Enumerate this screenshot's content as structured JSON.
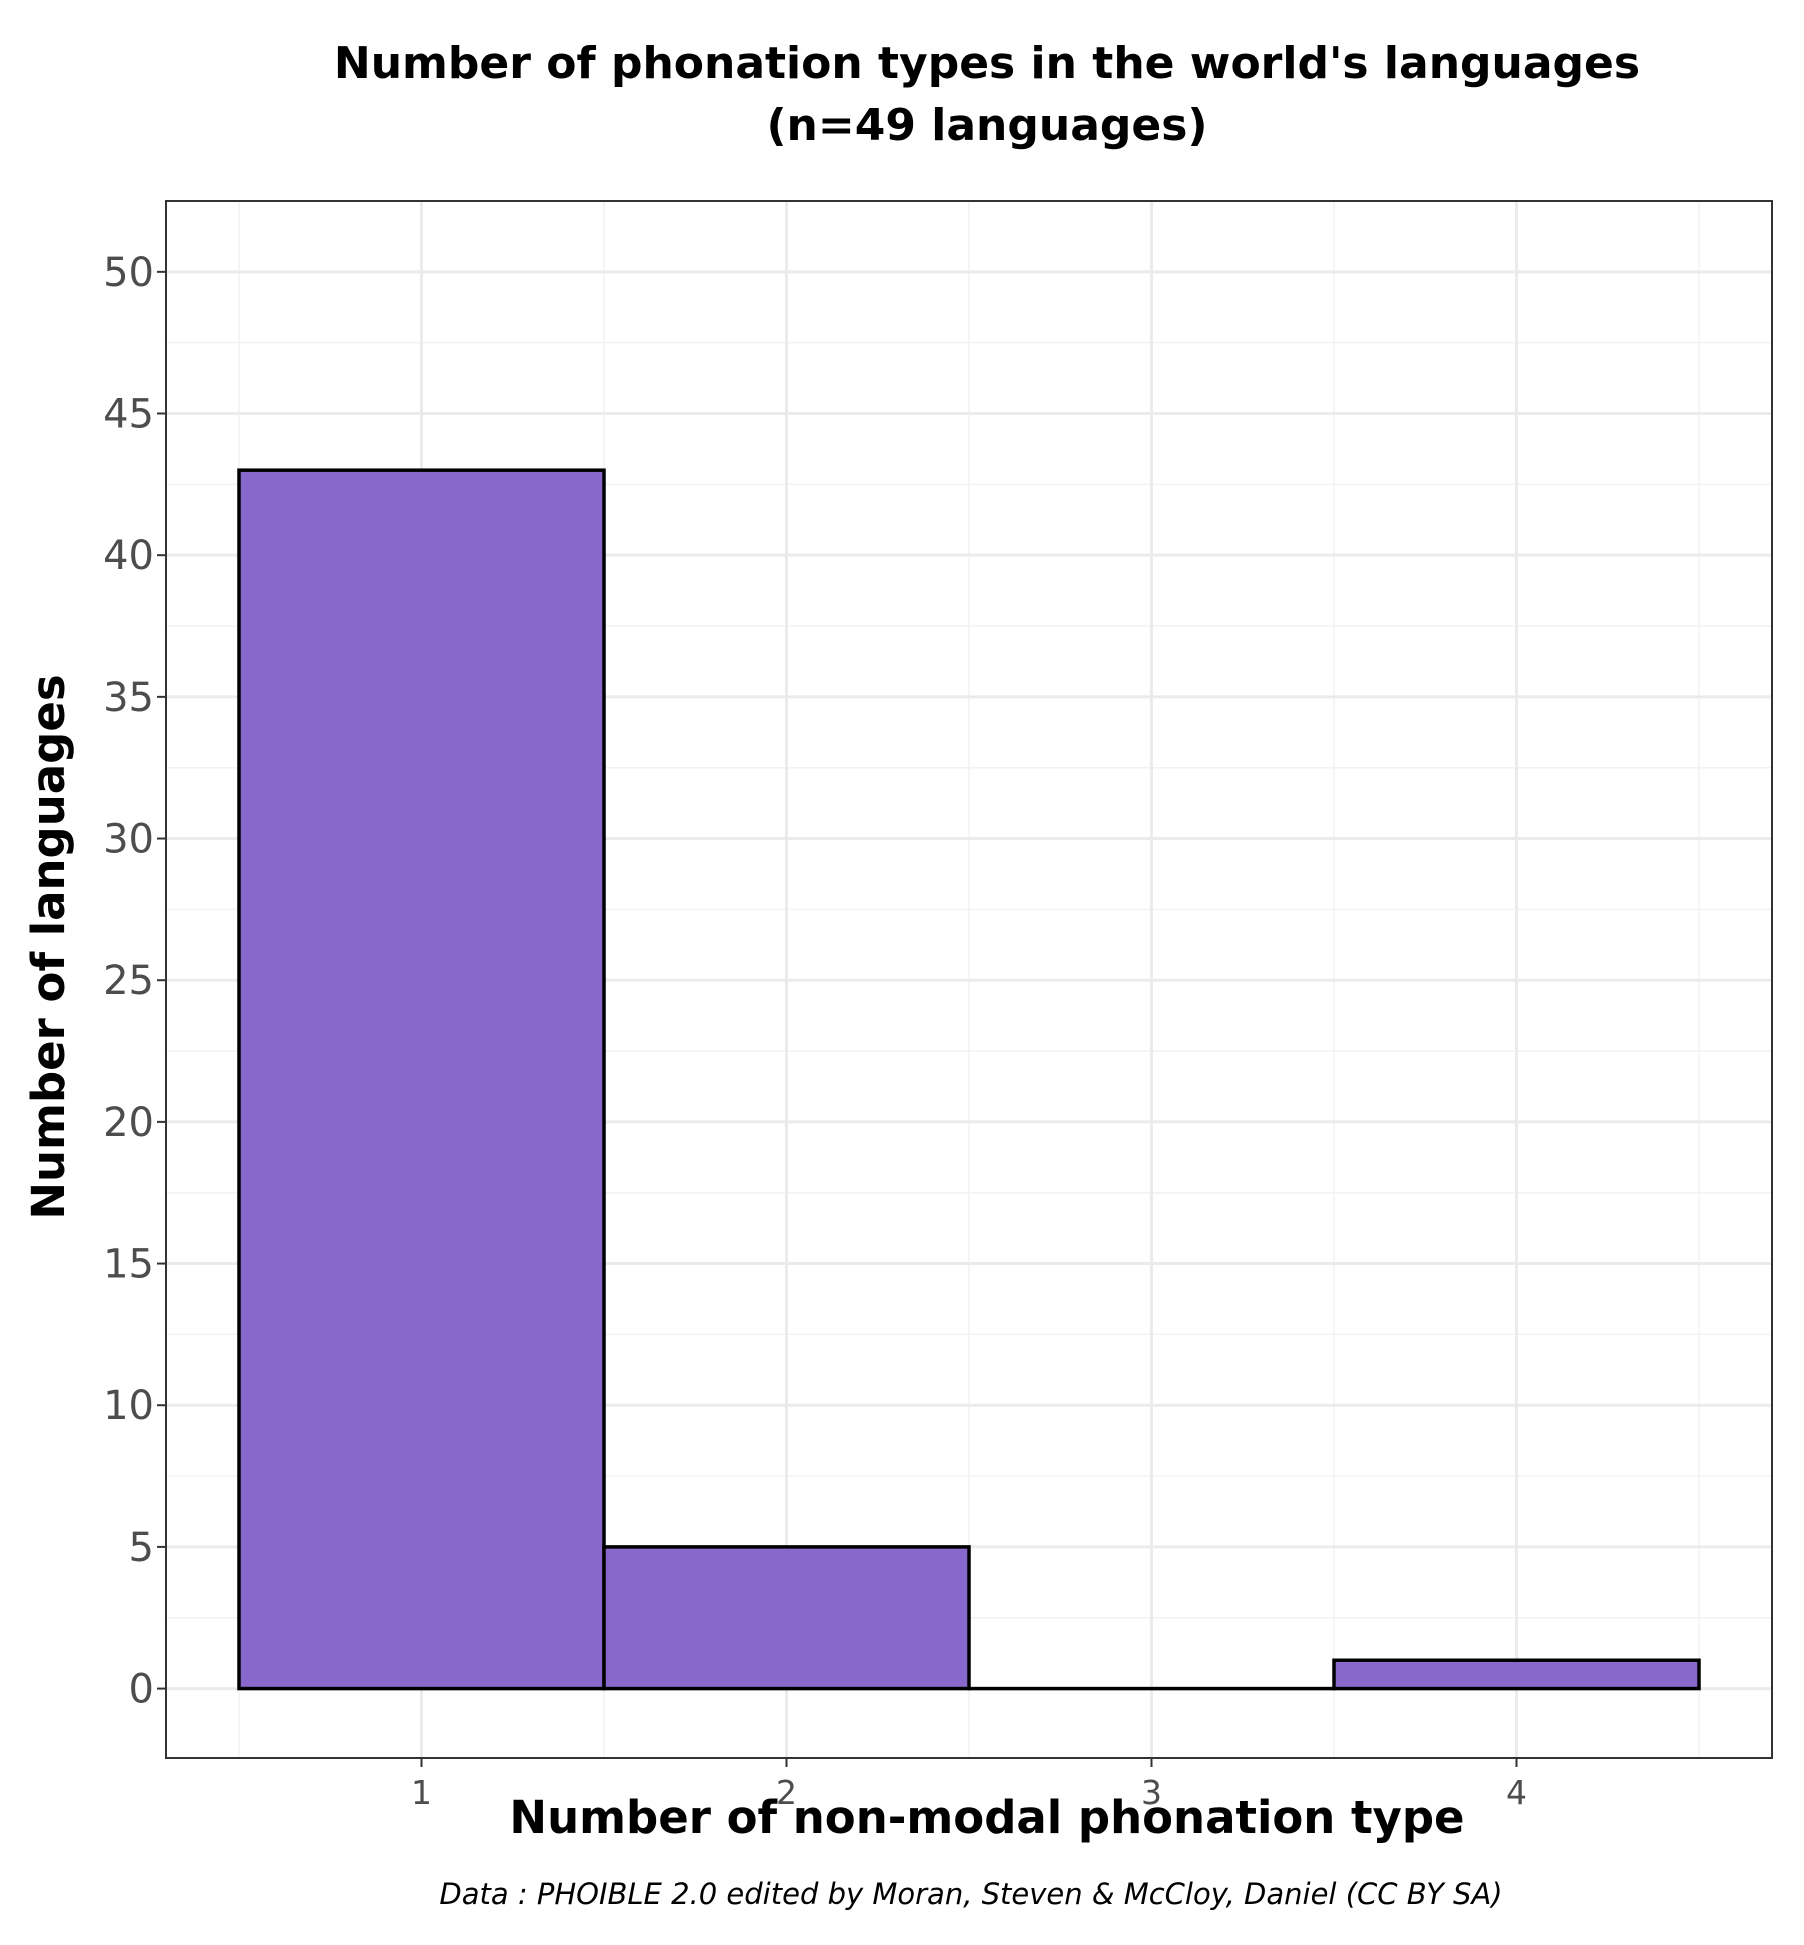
{
  "chart_data": {
    "type": "bar",
    "title_lines": [
      "Number of phonation types in the world's languages",
      "(n=49 languages)"
    ],
    "xlabel": "Number of non-modal phonation type",
    "ylabel": "Number of languages",
    "caption": "Data : PHOIBLE 2.0 edited by Moran, Steven & McCloy, Daniel (CC BY SA)",
    "categories": [
      "1",
      "2",
      "3",
      "4"
    ],
    "x": [
      1,
      2,
      3,
      4
    ],
    "values": [
      43,
      5,
      0,
      1
    ],
    "bar_width": 1,
    "xlim": [
      0.3,
      4.7
    ],
    "ylim": [
      -2.45,
      52.5
    ],
    "yticks": [
      0,
      5,
      10,
      15,
      20,
      25,
      30,
      35,
      40,
      45,
      50
    ],
    "xticks": [
      1,
      2,
      3,
      4
    ],
    "grid": true,
    "legend": "none",
    "colors": {
      "bar_fill": "#8868cb",
      "bar_stroke": "#000000",
      "grid_major": "#ebebeb",
      "grid_minor": "#f2f2f2",
      "panel_border": "#333333",
      "tick_text": "#4d4d4d"
    }
  }
}
